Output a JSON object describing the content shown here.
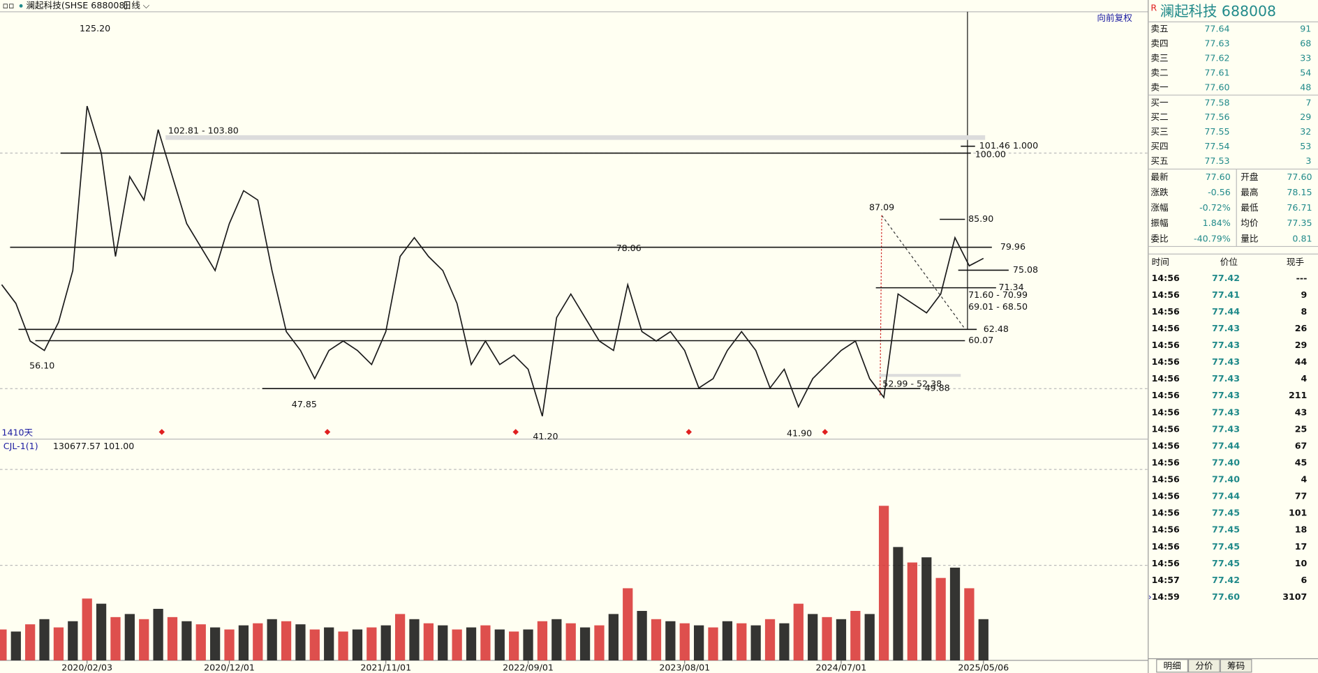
{
  "header": {
    "symbol": "澜起科技(SHSE 688008)",
    "period": "日线",
    "adjust": "向前复权"
  },
  "chart_data": {
    "type": "line",
    "span_label": "1410天",
    "categories": [
      null,
      null,
      null,
      null,
      null,
      null,
      "2020/02/03",
      null,
      null,
      null,
      null,
      null,
      null,
      null,
      null,
      null,
      "2020/12/01",
      null,
      null,
      null,
      null,
      null,
      null,
      null,
      null,
      null,
      null,
      "2021/11/01",
      null,
      null,
      null,
      null,
      null,
      null,
      null,
      null,
      null,
      "2022/09/01",
      null,
      null,
      null,
      null,
      null,
      null,
      null,
      null,
      null,
      null,
      "2023/08/01",
      null,
      null,
      null,
      null,
      null,
      null,
      null,
      null,
      null,
      null,
      "2024/07/01",
      null,
      null,
      null,
      null,
      null,
      null,
      null,
      null,
      null,
      "2025/05/06"
    ],
    "series": [
      {
        "color": "#1a1a1a",
        "values": [
          72,
          68,
          60,
          58,
          64,
          75,
          110,
          100,
          78,
          95,
          90,
          105,
          95,
          85,
          80,
          75,
          85,
          92,
          90,
          75,
          62,
          58,
          52,
          58,
          60,
          58,
          55,
          62,
          78,
          82,
          78,
          75,
          68,
          55,
          60,
          55,
          57,
          54,
          44,
          65,
          70,
          65,
          60,
          58,
          72,
          62,
          60,
          62,
          58,
          50,
          52,
          58,
          62,
          58,
          50,
          54,
          46,
          52,
          55,
          58,
          60,
          52,
          48,
          70,
          68,
          66,
          70,
          82,
          76,
          77.6
        ]
      }
    ],
    "ylim": [
      39.12,
      130.08
    ],
    "extremes": [
      {
        "value": 125.2,
        "label": "125.20"
      },
      {
        "value": 87.09,
        "label": "87.09"
      },
      {
        "value": 78.06,
        "label": "78.06"
      },
      {
        "value": 56.1,
        "label": "56.10"
      },
      {
        "value": 47.85,
        "label": "47.85"
      },
      {
        "value": 41.2,
        "label": "41.20"
      },
      {
        "value": 41.9,
        "label": "41.90"
      }
    ],
    "levels": [
      {
        "value": 101.46,
        "label": "101.46  1.000"
      },
      {
        "value": 100,
        "label": "100.00"
      },
      {
        "value": 85.9,
        "label": "85.90"
      },
      {
        "value": 79.96,
        "label": "79.96"
      },
      {
        "value": 75.08,
        "label": "75.08"
      },
      {
        "value": 71.34,
        "label": "71.34"
      },
      {
        "value": 62.48,
        "label": "62.48"
      },
      {
        "value": 60.07,
        "label": "60.07"
      },
      {
        "value": 49.88,
        "label": "49.88"
      }
    ],
    "bands": [
      {
        "low": 102.81,
        "high": 103.8,
        "label": "102.81 - 103.80"
      },
      {
        "low": 52.38,
        "high": 52.99,
        "label": "52.99 - 52.38"
      }
    ],
    "range_labels": [
      "71.60 - 70.99",
      "69.01 - 68.50"
    ],
    "volume": {
      "indicator": "CJL-1(1)",
      "readings": [
        "130677.57",
        "101.00"
      ],
      "color": "#d83030",
      "ylim": [
        0,
        200000
      ],
      "values": [
        30000,
        28000,
        35000,
        40000,
        32000,
        38000,
        60000,
        55000,
        42000,
        45000,
        40000,
        50000,
        42000,
        38000,
        35000,
        32000,
        30000,
        34000,
        36000,
        40000,
        38000,
        35000,
        30000,
        32000,
        28000,
        30000,
        32000,
        34000,
        45000,
        40000,
        36000,
        34000,
        30000,
        32000,
        34000,
        30000,
        28000,
        30000,
        38000,
        40000,
        36000,
        32000,
        34000,
        45000,
        70000,
        48000,
        40000,
        38000,
        36000,
        34000,
        32000,
        38000,
        36000,
        34000,
        40000,
        36000,
        55000,
        45000,
        42000,
        40000,
        48000,
        45000,
        150000,
        110000,
        95000,
        100000,
        80000,
        90000,
        70000,
        40000
      ]
    }
  },
  "quote_panel": {
    "flag": "R",
    "title": "澜起科技  688008",
    "order_book": [
      {
        "label": "卖五",
        "price": "77.64",
        "qty": "91"
      },
      {
        "label": "卖四",
        "price": "77.63",
        "qty": "68"
      },
      {
        "label": "卖三",
        "price": "77.62",
        "qty": "33"
      },
      {
        "label": "卖二",
        "price": "77.61",
        "qty": "54"
      },
      {
        "label": "卖一",
        "price": "77.60",
        "qty": "48"
      },
      {
        "label": "买一",
        "price": "77.58",
        "qty": "7"
      },
      {
        "label": "买二",
        "price": "77.56",
        "qty": "29"
      },
      {
        "label": "买三",
        "price": "77.55",
        "qty": "32"
      },
      {
        "label": "买四",
        "price": "77.54",
        "qty": "53"
      },
      {
        "label": "买五",
        "price": "77.53",
        "qty": "3"
      }
    ],
    "stats": [
      [
        "最新",
        "77.60",
        "开盘",
        "77.60"
      ],
      [
        "涨跌",
        "-0.56",
        "最高",
        "78.15"
      ],
      [
        "涨幅",
        "-0.72%",
        "最低",
        "76.71"
      ],
      [
        "振幅",
        "1.84%",
        "均价",
        "77.35"
      ],
      [
        "委比",
        "-40.79%",
        "量比",
        "0.81"
      ]
    ],
    "trades_header": [
      "时间",
      "价位",
      "现手"
    ],
    "trades": [
      {
        "time": "14:56",
        "price": "77.42",
        "qty": "---",
        "color": "#218a8a"
      },
      {
        "time": "14:56",
        "price": "77.41",
        "qty": "9",
        "color": "#218a8a"
      },
      {
        "time": "14:56",
        "price": "77.44",
        "qty": "8",
        "color": "#e02020"
      },
      {
        "time": "14:56",
        "price": "77.43",
        "qty": "26",
        "color": "#218a8a"
      },
      {
        "time": "14:56",
        "price": "77.43",
        "qty": "29",
        "color": "#218a8a"
      },
      {
        "time": "14:56",
        "price": "77.43",
        "qty": "44",
        "color": "#218a8a"
      },
      {
        "time": "14:56",
        "price": "77.43",
        "qty": "4",
        "color": "#218a8a"
      },
      {
        "time": "14:56",
        "price": "77.43",
        "qty": "211",
        "color": "#218a8a"
      },
      {
        "time": "14:56",
        "price": "77.43",
        "qty": "43",
        "color": "#218a8a"
      },
      {
        "time": "14:56",
        "price": "77.43",
        "qty": "25",
        "color": "#e02020"
      },
      {
        "time": "14:56",
        "price": "77.44",
        "qty": "67",
        "color": "#e02020"
      },
      {
        "time": "14:56",
        "price": "77.40",
        "qty": "45",
        "color": "#218a8a"
      },
      {
        "time": "14:56",
        "price": "77.40",
        "qty": "4",
        "color": "#218a8a"
      },
      {
        "time": "14:56",
        "price": "77.44",
        "qty": "77",
        "color": "#e02020"
      },
      {
        "time": "14:56",
        "price": "77.45",
        "qty": "101",
        "color": "#e02020"
      },
      {
        "time": "14:56",
        "price": "77.45",
        "qty": "18",
        "color": "#218a8a"
      },
      {
        "time": "14:56",
        "price": "77.45",
        "qty": "17",
        "color": "#218a8a"
      },
      {
        "time": "14:56",
        "price": "77.45",
        "qty": "10",
        "color": "#218a8a"
      },
      {
        "time": "14:57",
        "price": "77.42",
        "qty": "6",
        "color": "#218a8a"
      },
      {
        "time": "14:59",
        "price": "77.60",
        "qty": "3107",
        "color": "#e02020"
      }
    ],
    "tabs": [
      "明细",
      "分价",
      "筹码"
    ]
  }
}
